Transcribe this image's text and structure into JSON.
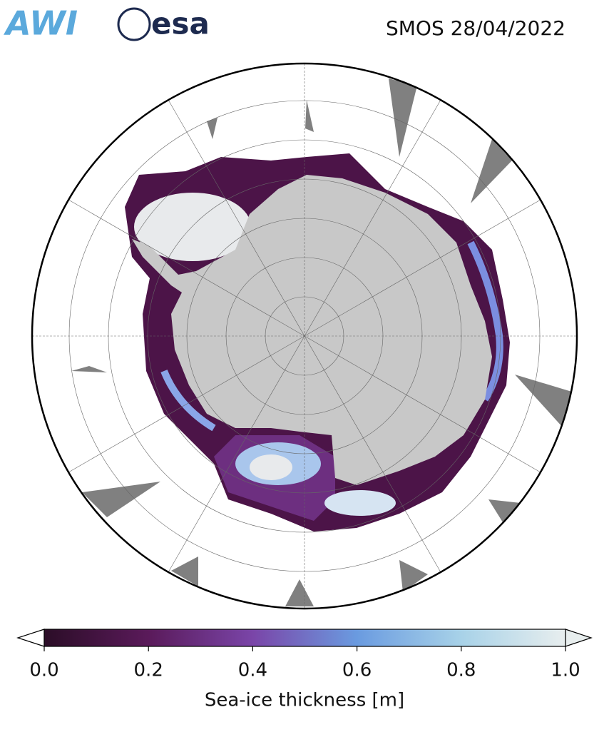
{
  "header": {
    "logos": [
      "AWI",
      "esa"
    ],
    "title": "SMOS 28/04/2022"
  },
  "colorbar": {
    "label": "Sea-ice thickness [m]",
    "lim": [
      0,
      1
    ],
    "ticks": [
      {
        "value": 0,
        "label": "0.0"
      },
      0.2,
      0.4,
      0.6,
      0.8,
      {
        "value": 1,
        "label": "1.0"
      }
    ],
    "colors": [
      "#2b0d27",
      "#5a1a5a",
      "#7a45a8",
      "#6a9be0",
      "#a8d2e8",
      "#e8eeee"
    ]
  }
}
